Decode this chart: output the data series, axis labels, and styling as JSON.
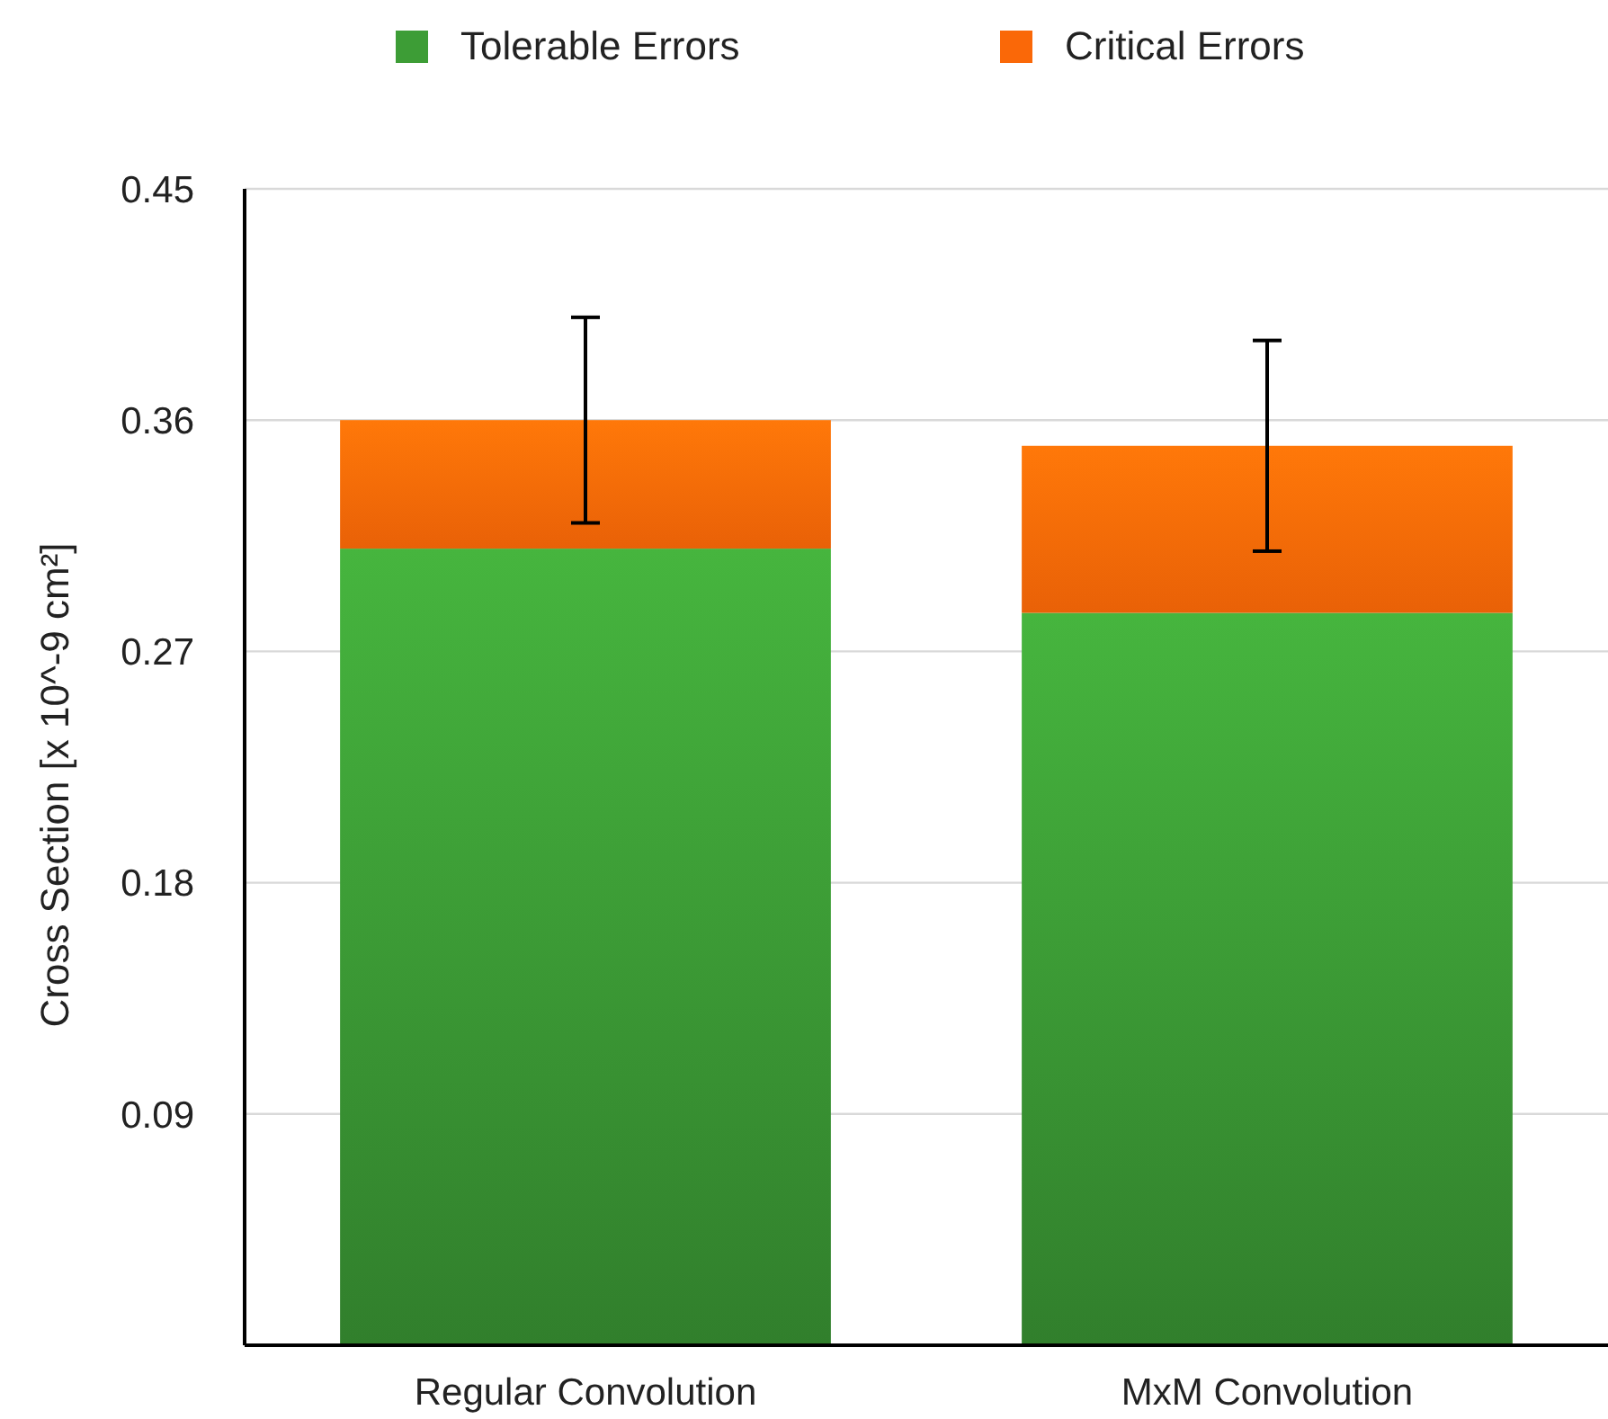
{
  "chart_data": {
    "type": "bar",
    "stacked": true,
    "ylabel": "Cross Section [x 10^-9 cm²]",
    "categories": [
      "Regular Convolution",
      "MxM Convolution"
    ],
    "series": [
      {
        "name": "Tolerable Errors",
        "color": "#3d9d36",
        "values": [
          0.31,
          0.285
        ]
      },
      {
        "name": "Critical Errors",
        "color": "#fa6808",
        "values": [
          0.05,
          0.065
        ],
        "errors": [
          0.04,
          0.041
        ]
      }
    ],
    "ylim": [
      0,
      0.45
    ],
    "yticks": [
      0.09,
      0.18,
      0.27,
      0.36,
      0.45
    ],
    "grid": "y",
    "legend": "top"
  }
}
